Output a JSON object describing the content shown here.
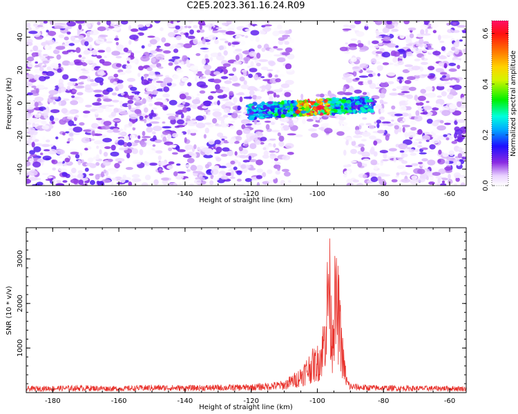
{
  "title": "C2E5.2023.361.16.24.R09",
  "chart_data": [
    {
      "type": "heatmap",
      "xlabel": "Height of straight line (km)",
      "ylabel": "Frequency (Hz)",
      "xlim": [
        -188,
        -55
      ],
      "ylim": [
        -50,
        50
      ],
      "xticks": [
        -180,
        -160,
        -140,
        -120,
        -100,
        -80,
        -60
      ],
      "yticks": [
        -40,
        -20,
        0,
        20,
        40
      ],
      "colorbar": {
        "label": "Normalized spectral amplitude",
        "range": [
          0.0,
          0.65
        ],
        "ticks": [
          0.0,
          0.2,
          0.4,
          0.6
        ]
      },
      "features": {
        "empty_band_km": [
          -108,
          -92
        ],
        "signal_band_freq_hz": [
          -8,
          3
        ],
        "signal_band_km": [
          -121,
          -83
        ],
        "peak_km": [
          -106,
          -96
        ],
        "peak_amplitude": 0.6
      },
      "grid": false
    },
    {
      "type": "line",
      "xlabel": "Height of straight line (km)",
      "ylabel": "SNR (10 * v/v)",
      "xlim": [
        -188,
        -55
      ],
      "ylim": [
        0,
        3700
      ],
      "xticks": [
        -180,
        -160,
        -140,
        -120,
        -100,
        -80,
        -60
      ],
      "yticks": [
        1000,
        2000,
        3000
      ],
      "color": "#e8302a",
      "series": [
        {
          "x": [
            -188,
            -180,
            -170,
            -160,
            -150,
            -140,
            -130,
            -120,
            -115,
            -110,
            -108,
            -106,
            -104,
            -102,
            -100,
            -99,
            -98,
            -97,
            -96.5,
            -96,
            -95.5,
            -95,
            -94,
            -93.5,
            -93,
            -92,
            -91,
            -90,
            -85,
            -80,
            -70,
            -60,
            -55
          ],
          "values": [
            120,
            130,
            140,
            120,
            150,
            140,
            150,
            160,
            190,
            230,
            330,
            420,
            600,
            800,
            900,
            1100,
            1500,
            2600,
            3650,
            2300,
            1700,
            2600,
            2550,
            2300,
            1700,
            800,
            300,
            180,
            150,
            140,
            130,
            130,
            120
          ]
        }
      ],
      "grid": false
    }
  ]
}
